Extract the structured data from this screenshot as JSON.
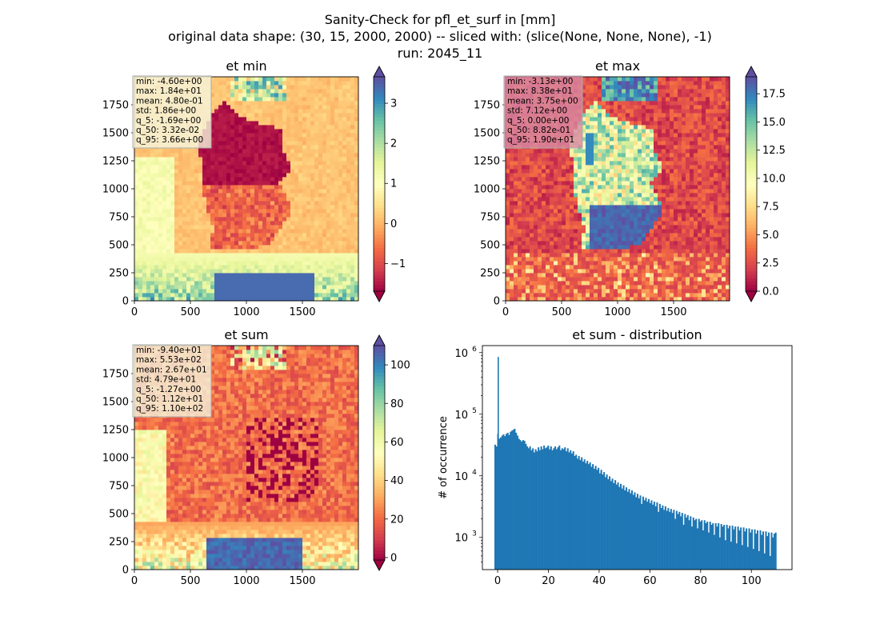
{
  "figure": {
    "suptitle_lines": [
      "Sanity-Check for pfl_et_surf in [mm]",
      "original data shape: (30, 15, 2000, 2000) -- sliced with: (slice(None, None, None), -1)",
      "run: 2045_11"
    ]
  },
  "chart_data": [
    {
      "type": "heatmap",
      "title": "et min",
      "xlim": [
        0,
        2000
      ],
      "ylim": [
        0,
        2000
      ],
      "xticks": [
        0,
        500,
        1000,
        1500
      ],
      "yticks": [
        0,
        250,
        500,
        750,
        1000,
        1250,
        1500,
        1750
      ],
      "colormap": "Spectral",
      "colorbar": {
        "vmin": -1.69,
        "vmax": 3.66,
        "ticks": [
          -1,
          0,
          1,
          2,
          3
        ],
        "extend": "both"
      },
      "stats": [
        "min: -4.60e+00",
        "max: 1.84e+01",
        "mean: 4.80e-01",
        "std: 1.86e+00",
        "q_5: -1.69e+00",
        "q_50: 3.32e-02",
        "q_95: 3.66e+00"
      ],
      "stats_box_color": "#f5f5dc",
      "field": "min"
    },
    {
      "type": "heatmap",
      "title": "et max",
      "xlim": [
        0,
        2000
      ],
      "ylim": [
        0,
        2000
      ],
      "xticks": [
        0,
        500,
        1000,
        1500
      ],
      "yticks": [
        0,
        250,
        500,
        750,
        1000,
        1250,
        1500,
        1750
      ],
      "colormap": "Spectral",
      "colorbar": {
        "vmin": 0.0,
        "vmax": 19.0,
        "ticks": [
          0.0,
          2.5,
          5.0,
          7.5,
          10.0,
          12.5,
          15.0,
          17.5
        ],
        "extend": "both"
      },
      "stats": [
        "min: -3.13e+00",
        "max: 8.38e+01",
        "mean: 3.75e+00",
        "std: 7.12e+00",
        "q_5: 0.00e+00",
        "q_50: 8.82e-01",
        "q_95: 1.90e+01"
      ],
      "stats_box_color": "#d88aa4",
      "field": "max"
    },
    {
      "type": "heatmap",
      "title": "et sum",
      "xlim": [
        0,
        2000
      ],
      "ylim": [
        0,
        2000
      ],
      "xticks": [
        0,
        500,
        1000,
        1500
      ],
      "yticks": [
        0,
        250,
        500,
        750,
        1000,
        1250,
        1500,
        1750
      ],
      "colormap": "Spectral",
      "colorbar": {
        "vmin": -1.27,
        "vmax": 110,
        "ticks": [
          0,
          20,
          40,
          60,
          80,
          100
        ],
        "extend": "both"
      },
      "stats": [
        "min: -9.40e+01",
        "max: 5.53e+02",
        "mean: 2.67e+01",
        "std: 4.79e+01",
        "q_5: -1.27e+00",
        "q_50: 1.12e+01",
        "q_95: 1.10e+02"
      ],
      "stats_box_color": "#f5f5dc",
      "field": "sum"
    },
    {
      "type": "bar",
      "subtype": "histogram",
      "title": "et sum - distribution",
      "ylabel": "# of occurrence",
      "xlabel": "",
      "yscale": "log",
      "xlim": [
        -6,
        116
      ],
      "ylim": [
        300,
        1300000
      ],
      "xticks": [
        0,
        20,
        40,
        60,
        80,
        100
      ],
      "yticks": [
        1000,
        10000,
        100000,
        1000000
      ],
      "ytick_labels": [
        "10",
        "10",
        "10",
        "10"
      ],
      "ytick_exponents": [
        "3",
        "4",
        "5",
        "6"
      ],
      "color": "#1f77b4",
      "bin_width": 0.55,
      "spike": {
        "x": 0,
        "value": 850000
      },
      "bins": [
        [
          -1.27,
          32000
        ],
        [
          -0.72,
          30000
        ],
        [
          -0.17,
          48000
        ],
        [
          0.38,
          40000
        ],
        [
          0.93,
          42000
        ],
        [
          1.48,
          45000
        ],
        [
          2.03,
          47000
        ],
        [
          2.58,
          44000
        ],
        [
          3.13,
          48000
        ],
        [
          3.68,
          50000
        ],
        [
          4.23,
          46000
        ],
        [
          4.78,
          52000
        ],
        [
          5.33,
          54000
        ],
        [
          5.88,
          56000
        ],
        [
          6.43,
          58000
        ],
        [
          6.98,
          50000
        ],
        [
          7.53,
          45000
        ],
        [
          8.08,
          40000
        ],
        [
          8.63,
          38000
        ],
        [
          9.18,
          36000
        ],
        [
          9.73,
          38000
        ],
        [
          10.28,
          37000
        ],
        [
          10.83,
          33000
        ],
        [
          11.38,
          30000
        ],
        [
          11.93,
          28000
        ],
        [
          12.48,
          30000
        ],
        [
          13.03,
          26000
        ],
        [
          13.58,
          28000
        ],
        [
          14.13,
          24000
        ],
        [
          14.68,
          27000
        ],
        [
          15.23,
          25000
        ],
        [
          15.78,
          29000
        ],
        [
          16.33,
          26000
        ],
        [
          16.88,
          30000
        ],
        [
          17.43,
          27000
        ],
        [
          17.98,
          31000
        ],
        [
          18.53,
          28000
        ],
        [
          19.08,
          29000
        ],
        [
          19.63,
          31000
        ],
        [
          20.18,
          27000
        ],
        [
          20.73,
          30000
        ],
        [
          21.28,
          26000
        ],
        [
          21.83,
          28000
        ],
        [
          22.38,
          30000
        ],
        [
          22.93,
          27000
        ],
        [
          23.48,
          29000
        ],
        [
          24.03,
          31000
        ],
        [
          24.58,
          26000
        ],
        [
          25.13,
          28000
        ],
        [
          25.68,
          27000
        ],
        [
          26.23,
          29000
        ],
        [
          26.78,
          25000
        ],
        [
          27.33,
          28000
        ],
        [
          27.88,
          24000
        ],
        [
          28.43,
          26000
        ],
        [
          28.98,
          23000
        ],
        [
          29.53,
          25000
        ],
        [
          30.08,
          21000
        ],
        [
          30.63,
          22000
        ],
        [
          31.18,
          19000
        ],
        [
          31.73,
          21000
        ],
        [
          32.28,
          18000
        ],
        [
          32.83,
          20000
        ],
        [
          33.38,
          17000
        ],
        [
          33.93,
          18500
        ],
        [
          34.48,
          16000
        ],
        [
          35.03,
          17500
        ],
        [
          35.58,
          15500
        ],
        [
          36.13,
          16500
        ],
        [
          36.68,
          14000
        ],
        [
          37.23,
          15500
        ],
        [
          37.78,
          13000
        ],
        [
          38.33,
          14500
        ],
        [
          38.88,
          12500
        ],
        [
          39.43,
          13500
        ],
        [
          39.98,
          11000
        ],
        [
          40.53,
          12500
        ],
        [
          41.08,
          10500
        ],
        [
          41.63,
          11500
        ],
        [
          42.18,
          9500
        ],
        [
          42.73,
          10500
        ],
        [
          43.28,
          8800
        ],
        [
          43.83,
          9800
        ],
        [
          44.38,
          8200
        ],
        [
          44.93,
          9000
        ],
        [
          45.48,
          7600
        ],
        [
          46.03,
          8500
        ],
        [
          46.58,
          7200
        ],
        [
          47.13,
          7800
        ],
        [
          47.68,
          6600
        ],
        [
          48.23,
          7400
        ],
        [
          48.78,
          6200
        ],
        [
          49.33,
          7000
        ],
        [
          49.88,
          5800
        ],
        [
          50.43,
          6500
        ],
        [
          50.98,
          5500
        ],
        [
          51.53,
          6100
        ],
        [
          52.08,
          5200
        ],
        [
          52.63,
          5800
        ],
        [
          53.18,
          4900
        ],
        [
          53.73,
          5400
        ],
        [
          54.28,
          4500
        ],
        [
          54.83,
          5100
        ],
        [
          55.38,
          4300
        ],
        [
          55.93,
          4800
        ],
        [
          56.48,
          3500
        ],
        [
          57.03,
          4600
        ],
        [
          57.58,
          4000
        ],
        [
          58.13,
          4400
        ],
        [
          58.68,
          3800
        ],
        [
          59.23,
          4200
        ],
        [
          59.78,
          3600
        ],
        [
          60.33,
          4000
        ],
        [
          60.88,
          3400
        ],
        [
          61.43,
          3800
        ],
        [
          61.98,
          3200
        ],
        [
          62.53,
          3700
        ],
        [
          63.08,
          2600
        ],
        [
          63.63,
          3500
        ],
        [
          64.18,
          3000
        ],
        [
          64.73,
          3300
        ],
        [
          65.28,
          2800
        ],
        [
          65.83,
          3200
        ],
        [
          66.38,
          2700
        ],
        [
          66.93,
          3000
        ],
        [
          67.48,
          2600
        ],
        [
          68.03,
          2900
        ],
        [
          68.58,
          2500
        ],
        [
          69.13,
          2800
        ],
        [
          69.68,
          2000
        ],
        [
          70.23,
          2700
        ],
        [
          70.78,
          2400
        ],
        [
          71.33,
          2600
        ],
        [
          71.88,
          2200
        ],
        [
          72.43,
          2500
        ],
        [
          72.98,
          1600
        ],
        [
          73.53,
          2400
        ],
        [
          74.08,
          2100
        ],
        [
          74.63,
          2300
        ],
        [
          75.18,
          1900
        ],
        [
          75.73,
          2200
        ],
        [
          76.28,
          1500
        ],
        [
          76.83,
          2100
        ],
        [
          77.38,
          1900
        ],
        [
          77.93,
          2000
        ],
        [
          78.48,
          1400
        ],
        [
          79.03,
          2000
        ],
        [
          79.58,
          1800
        ],
        [
          80.13,
          1900
        ],
        [
          80.68,
          1300
        ],
        [
          81.23,
          1900
        ],
        [
          81.78,
          1700
        ],
        [
          82.33,
          1800
        ],
        [
          82.88,
          1200
        ],
        [
          83.43,
          1800
        ],
        [
          83.98,
          1600
        ],
        [
          84.53,
          1700
        ],
        [
          85.08,
          1100
        ],
        [
          85.63,
          1700
        ],
        [
          86.18,
          1500
        ],
        [
          86.73,
          1700
        ],
        [
          87.28,
          1000
        ],
        [
          87.83,
          1650
        ],
        [
          88.38,
          1500
        ],
        [
          88.93,
          1600
        ],
        [
          89.48,
          900
        ],
        [
          90.03,
          1600
        ],
        [
          90.58,
          1400
        ],
        [
          91.13,
          1550
        ],
        [
          91.68,
          850
        ],
        [
          92.23,
          1550
        ],
        [
          92.78,
          1350
        ],
        [
          93.33,
          1500
        ],
        [
          93.88,
          800
        ],
        [
          94.43,
          1500
        ],
        [
          94.98,
          1300
        ],
        [
          95.53,
          1450
        ],
        [
          96.08,
          750
        ],
        [
          96.63,
          1450
        ],
        [
          97.18,
          1250
        ],
        [
          97.73,
          1400
        ],
        [
          98.28,
          700
        ],
        [
          98.83,
          1400
        ],
        [
          99.38,
          1200
        ],
        [
          99.93,
          1350
        ],
        [
          100.48,
          650
        ],
        [
          101.03,
          1350
        ],
        [
          101.58,
          1150
        ],
        [
          102.13,
          1300
        ],
        [
          102.68,
          600
        ],
        [
          103.23,
          1300
        ],
        [
          103.78,
          1100
        ],
        [
          104.33,
          1250
        ],
        [
          104.88,
          550
        ],
        [
          105.43,
          1250
        ],
        [
          105.98,
          1050
        ],
        [
          106.53,
          1200
        ],
        [
          107.08,
          500
        ],
        [
          107.63,
          1200
        ],
        [
          108.18,
          1000
        ],
        [
          108.73,
          1150
        ],
        [
          109.28,
          1200
        ]
      ]
    }
  ]
}
